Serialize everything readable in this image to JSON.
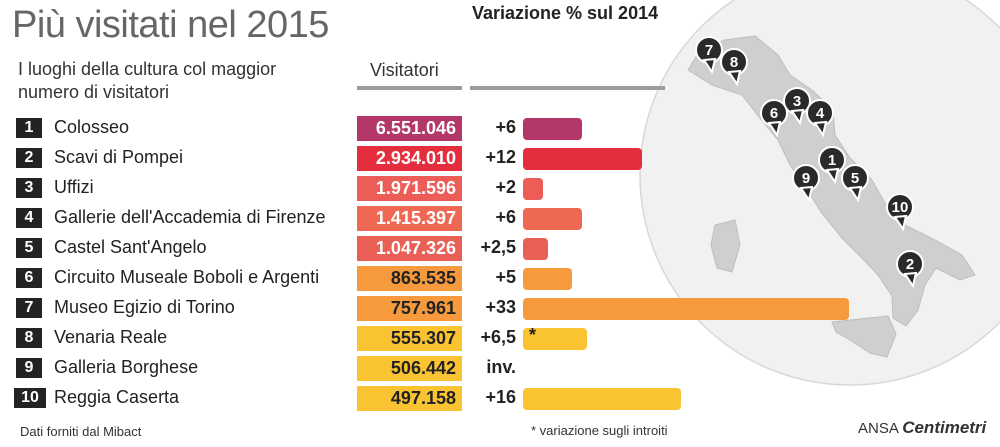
{
  "title": "Più visitati nel 2015",
  "subtitle": "I luoghi della cultura col maggior numero di visitatori",
  "columns": {
    "visitors": "Visitatori",
    "variation": "Variazione % sul 2014"
  },
  "footer": {
    "source": "Dati forniti dal Mibact",
    "note": "* variazione sugli introiti",
    "brand_prefix": "ANSA",
    "brand": "Centimetri"
  },
  "chart_data": {
    "type": "bar",
    "title": "Più visitati nel 2015",
    "subtitle": "I luoghi della cultura col maggior numero di visitatori",
    "categories": [
      "Colosseo",
      "Scavi di Pompei",
      "Uffizi",
      "Gallerie dell'Accademia di Firenze",
      "Castel Sant'Angelo",
      "Circuito Museale Boboli e Argenti",
      "Museo Egizio di Torino",
      "Venaria Reale",
      "Galleria Borghese",
      "Reggia Caserta"
    ],
    "ranks": [
      "1",
      "2",
      "3",
      "4",
      "5",
      "6",
      "7",
      "8",
      "9",
      "10"
    ],
    "visitors": [
      "6.551.046",
      "2.934.010",
      "1.971.596",
      "1.415.397",
      "1.047.326",
      "863.535",
      "757.961",
      "555.307",
      "506.442",
      "497.158"
    ],
    "variation_labels": [
      "+6",
      "+12",
      "+2",
      "+6",
      "+2,5",
      "+5",
      "+33",
      "+6,5",
      "inv.",
      "+16"
    ],
    "series": [
      {
        "values": [
          6,
          12,
          2,
          6,
          2.5,
          5,
          33,
          6.5,
          null,
          16
        ]
      }
    ],
    "bar_markers": [
      "",
      "",
      "",
      "",
      "",
      "",
      "",
      "*",
      "",
      ""
    ],
    "colors": [
      "#b4376a",
      "#e42e3e",
      "#ec5d57",
      "#ef6854",
      "#ea5f55",
      "#f79a3e",
      "#f79a3e",
      "#fac332",
      "#fac332",
      "#fac332"
    ],
    "map_markers": [
      "7",
      "8",
      "6",
      "3",
      "4",
      "9",
      "1",
      "5",
      "10",
      "2"
    ]
  }
}
